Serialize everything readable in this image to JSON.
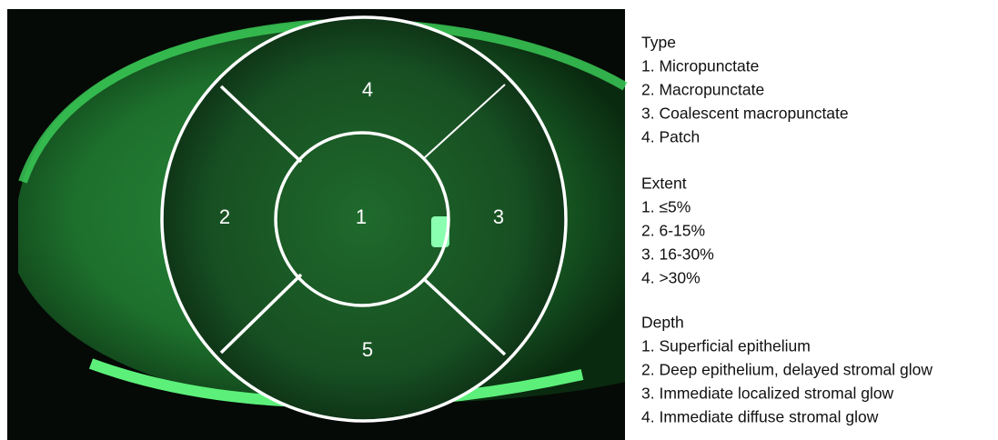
{
  "zones": [
    {
      "label": "4"
    },
    {
      "label": "2"
    },
    {
      "label": "1"
    },
    {
      "label": "3"
    },
    {
      "label": "5"
    }
  ],
  "legend": [
    {
      "heading": "Type",
      "items": [
        "1. Micropunctate",
        "2. Macropunctate",
        "3. Coalescent macropunctate",
        "4. Patch"
      ]
    },
    {
      "heading": "Extent",
      "items": [
        "1. ≤5%",
        "2. 6-15%",
        "3. 16-30%",
        "4. >30%"
      ]
    },
    {
      "heading": "Depth",
      "items": [
        "1. Superficial epithelium",
        "2. Deep epithelium, delayed stromal glow",
        "3. Immediate localized stromal glow",
        "4. Immediate diffuse stromal glow"
      ]
    }
  ]
}
